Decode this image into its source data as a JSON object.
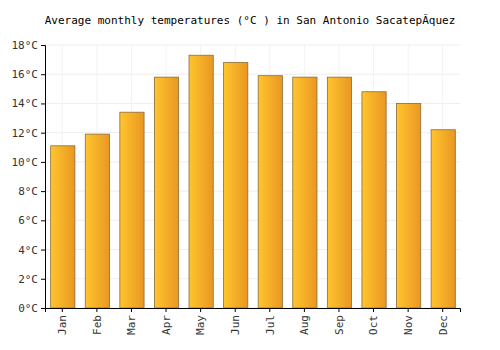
{
  "chart_data": {
    "type": "bar",
    "title": "Average monthly temperatures (°C ) in San Antonio SacatepÃquez",
    "categories": [
      "Jan",
      "Feb",
      "Mar",
      "Apr",
      "May",
      "Jun",
      "Jul",
      "Aug",
      "Sep",
      "Oct",
      "Nov",
      "Dec"
    ],
    "values": [
      11.1,
      11.9,
      13.4,
      15.8,
      17.3,
      16.8,
      15.9,
      15.8,
      15.8,
      14.8,
      14.0,
      12.2
    ],
    "color": "#ffa526",
    "ylim": [
      0,
      18
    ],
    "yticks": [
      {
        "value": 0,
        "label": "0°C"
      },
      {
        "value": 2,
        "label": "2°C"
      },
      {
        "value": 4,
        "label": "4°C"
      },
      {
        "value": 6,
        "label": "6°C"
      },
      {
        "value": 8,
        "label": "8°C"
      },
      {
        "value": 10,
        "label": "10°C"
      },
      {
        "value": 12,
        "label": "12°C"
      },
      {
        "value": 14,
        "label": "14°C"
      },
      {
        "value": 16,
        "label": "16°C"
      },
      {
        "value": 18,
        "label": "18°C"
      }
    ],
    "grid": true
  }
}
